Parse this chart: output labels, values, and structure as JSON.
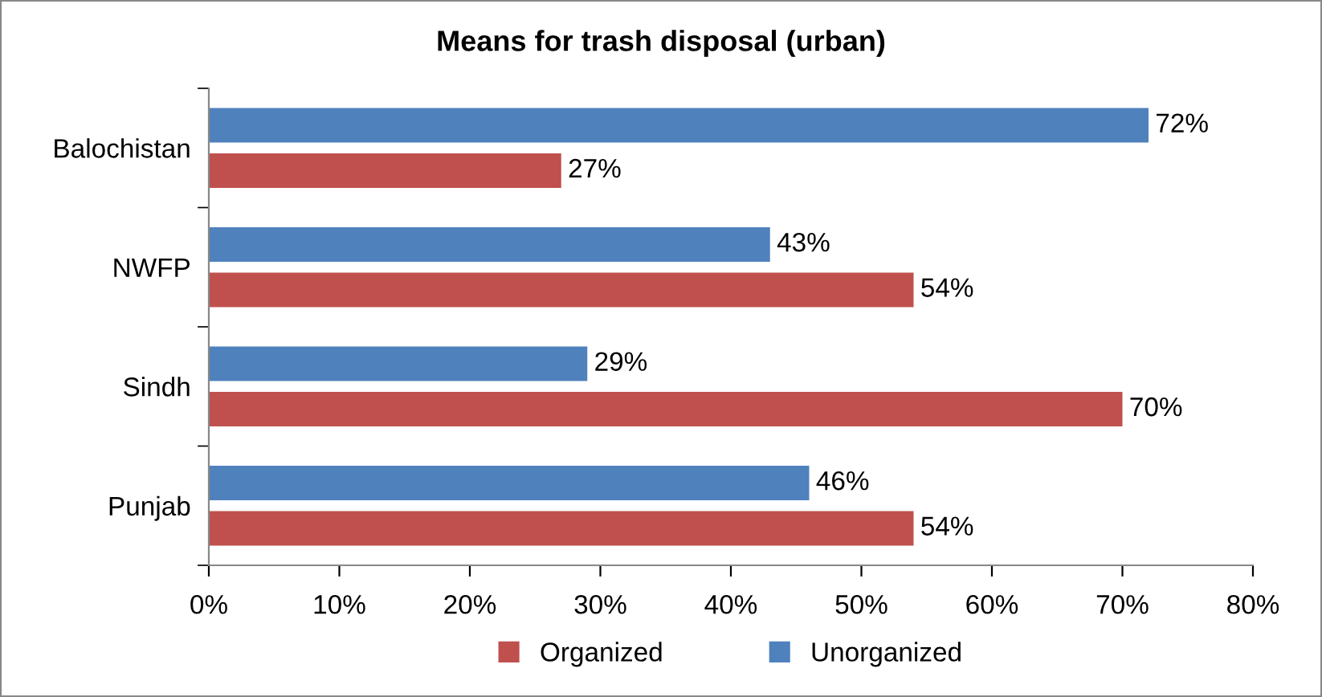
{
  "chart_data": {
    "type": "bar",
    "orientation": "horizontal",
    "title": "Means for trash disposal (urban)",
    "categories": [
      "Balochistan",
      "NWFP",
      "Sindh",
      "Punjab"
    ],
    "series": [
      {
        "name": "Organized",
        "color": "#c0504d",
        "values": [
          27,
          54,
          70,
          54
        ],
        "value_labels": [
          "27%",
          "54%",
          "70%",
          "54%"
        ]
      },
      {
        "name": "Unorganized",
        "color": "#4f81bd",
        "values": [
          72,
          43,
          29,
          46
        ],
        "value_labels": [
          "72%",
          "43%",
          "29%",
          "46%"
        ]
      }
    ],
    "xlim": [
      0,
      80
    ],
    "xticks": [
      {
        "value": 0,
        "label": "0%"
      },
      {
        "value": 10,
        "label": "10%"
      },
      {
        "value": 20,
        "label": "20%"
      },
      {
        "value": 30,
        "label": "30%"
      },
      {
        "value": 40,
        "label": "40%"
      },
      {
        "value": 50,
        "label": "50%"
      },
      {
        "value": 60,
        "label": "60%"
      },
      {
        "value": 70,
        "label": "70%"
      },
      {
        "value": 80,
        "label": "80%"
      }
    ],
    "grid": false,
    "legend": "bottom"
  }
}
